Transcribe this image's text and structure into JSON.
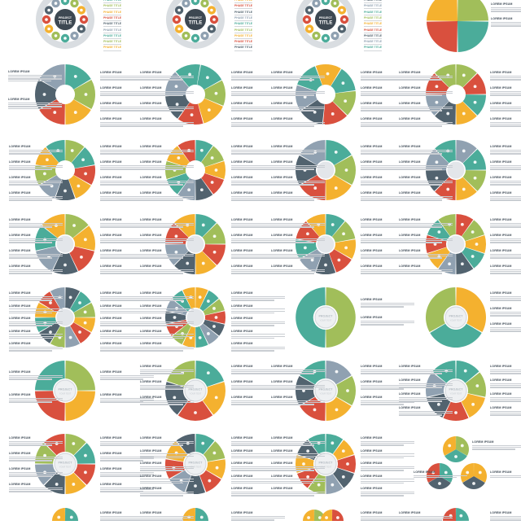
{
  "text": {
    "lorem": "LOREM IPSUM",
    "phase": "PHASE TITLE",
    "project": "PROJECT",
    "title": "TITLE",
    "subtitle": "YOUR TEXT"
  },
  "palette": [
    "#4bac9a",
    "#a1be5a",
    "#f4b12f",
    "#d9503e",
    "#52636f",
    "#90a1b1"
  ],
  "ring_color": "#d9dde1",
  "hub_color": "#e3e6ea",
  "center_dark": "#3d4852"
}
